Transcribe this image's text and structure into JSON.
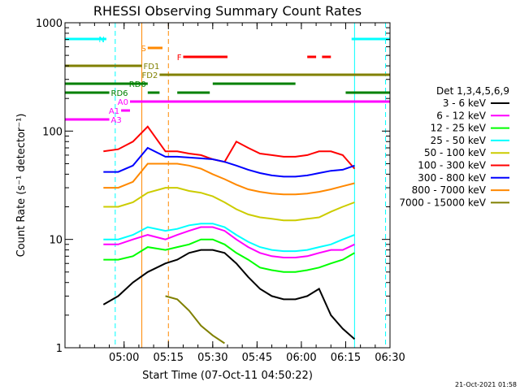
{
  "chart_data": {
    "type": "line",
    "title": "RHESSI Observing Summary Count Rates",
    "xlabel": "Start Time (07-Oct-11 04:50:22)",
    "ylabel": "Count Rate (s⁻¹ detector⁻¹)",
    "yscale": "log",
    "ylim": [
      1,
      1000
    ],
    "xlim_minutes": [
      -10,
      100
    ],
    "x_ticks": [
      {
        "min": 10,
        "label": "05:00"
      },
      {
        "min": 25,
        "label": "05:15"
      },
      {
        "min": 40,
        "label": "05:30"
      },
      {
        "min": 55,
        "label": "05:45"
      },
      {
        "min": 70,
        "label": "06:00"
      },
      {
        "min": 85,
        "label": "06:15"
      },
      {
        "min": 100,
        "label": "06:30"
      }
    ],
    "y_ticks": [
      {
        "value": 1,
        "label": "1"
      },
      {
        "value": 10,
        "label": "10"
      },
      {
        "value": 100,
        "label": "100"
      },
      {
        "value": 1000,
        "label": "1000"
      }
    ],
    "legend_title": "Det 1,3,4,5,6,9",
    "legend_position": "right",
    "series": [
      {
        "name": "3 - 6 keV",
        "color": "#000000",
        "data": [
          [
            3,
            2.5
          ],
          [
            8,
            3
          ],
          [
            13,
            4
          ],
          [
            18,
            5
          ],
          [
            24,
            6
          ],
          [
            28,
            6.5
          ],
          [
            32,
            7.5
          ],
          [
            36,
            8
          ],
          [
            40,
            8
          ],
          [
            44,
            7.5
          ],
          [
            48,
            6
          ],
          [
            52,
            4.5
          ],
          [
            56,
            3.5
          ],
          [
            60,
            3
          ],
          [
            64,
            2.8
          ],
          [
            68,
            2.8
          ],
          [
            72,
            3
          ],
          [
            76,
            3.5
          ],
          [
            80,
            2
          ],
          [
            84,
            1.5
          ],
          [
            88,
            1.2
          ]
        ]
      },
      {
        "name": "6 - 12 keV",
        "color": "#ff00ff",
        "data": [
          [
            3,
            9
          ],
          [
            8,
            9
          ],
          [
            13,
            10
          ],
          [
            18,
            11
          ],
          [
            24,
            10
          ],
          [
            28,
            11
          ],
          [
            32,
            12
          ],
          [
            36,
            13
          ],
          [
            40,
            13
          ],
          [
            44,
            12
          ],
          [
            48,
            10
          ],
          [
            52,
            8.5
          ],
          [
            56,
            7.5
          ],
          [
            60,
            7
          ],
          [
            64,
            6.8
          ],
          [
            68,
            6.8
          ],
          [
            72,
            7
          ],
          [
            76,
            7.5
          ],
          [
            80,
            8
          ],
          [
            84,
            8
          ],
          [
            88,
            9
          ]
        ]
      },
      {
        "name": "12 - 25 keV",
        "color": "#00ff00",
        "data": [
          [
            3,
            6.5
          ],
          [
            8,
            6.5
          ],
          [
            13,
            7
          ],
          [
            18,
            8.5
          ],
          [
            24,
            8
          ],
          [
            28,
            8.5
          ],
          [
            32,
            9
          ],
          [
            36,
            10
          ],
          [
            40,
            10
          ],
          [
            44,
            9
          ],
          [
            48,
            7.5
          ],
          [
            52,
            6.5
          ],
          [
            56,
            5.5
          ],
          [
            60,
            5.2
          ],
          [
            64,
            5
          ],
          [
            68,
            5
          ],
          [
            72,
            5.2
          ],
          [
            76,
            5.5
          ],
          [
            80,
            6
          ],
          [
            84,
            6.5
          ],
          [
            88,
            7.5
          ]
        ]
      },
      {
        "name": "25 - 50 keV",
        "color": "#00ffff",
        "data": [
          [
            3,
            10
          ],
          [
            8,
            10
          ],
          [
            13,
            11
          ],
          [
            18,
            13
          ],
          [
            24,
            12
          ],
          [
            28,
            12.5
          ],
          [
            32,
            13.5
          ],
          [
            36,
            14
          ],
          [
            40,
            14
          ],
          [
            44,
            13
          ],
          [
            48,
            11
          ],
          [
            52,
            9.5
          ],
          [
            56,
            8.5
          ],
          [
            60,
            8
          ],
          [
            64,
            7.8
          ],
          [
            68,
            7.8
          ],
          [
            72,
            8
          ],
          [
            76,
            8.5
          ],
          [
            80,
            9
          ],
          [
            84,
            10
          ],
          [
            88,
            11
          ]
        ]
      },
      {
        "name": "50 - 100 keV",
        "color": "#cccc00",
        "data": [
          [
            3,
            20
          ],
          [
            8,
            20
          ],
          [
            13,
            22
          ],
          [
            18,
            27
          ],
          [
            24,
            30
          ],
          [
            28,
            30
          ],
          [
            32,
            28
          ],
          [
            36,
            27
          ],
          [
            40,
            25
          ],
          [
            44,
            22
          ],
          [
            48,
            19
          ],
          [
            52,
            17
          ],
          [
            56,
            16
          ],
          [
            60,
            15.5
          ],
          [
            64,
            15
          ],
          [
            68,
            15
          ],
          [
            72,
            15.5
          ],
          [
            76,
            16
          ],
          [
            80,
            18
          ],
          [
            84,
            20
          ],
          [
            88,
            22
          ]
        ]
      },
      {
        "name": "100 - 300 keV",
        "color": "#ff0000",
        "data": [
          [
            3,
            65
          ],
          [
            8,
            68
          ],
          [
            13,
            80
          ],
          [
            18,
            110
          ],
          [
            24,
            65
          ],
          [
            28,
            65
          ],
          [
            32,
            62
          ],
          [
            36,
            60
          ],
          [
            40,
            55
          ],
          [
            44,
            52
          ],
          [
            48,
            80
          ],
          [
            52,
            70
          ],
          [
            56,
            62
          ],
          [
            60,
            60
          ],
          [
            64,
            58
          ],
          [
            68,
            58
          ],
          [
            72,
            60
          ],
          [
            76,
            65
          ],
          [
            80,
            65
          ],
          [
            84,
            60
          ],
          [
            88,
            45
          ]
        ]
      },
      {
        "name": "300 - 800 keV",
        "color": "#0000ff",
        "data": [
          [
            3,
            42
          ],
          [
            8,
            42
          ],
          [
            13,
            48
          ],
          [
            18,
            70
          ],
          [
            24,
            58
          ],
          [
            28,
            58
          ],
          [
            32,
            57
          ],
          [
            36,
            56
          ],
          [
            40,
            55
          ],
          [
            44,
            52
          ],
          [
            48,
            48
          ],
          [
            52,
            44
          ],
          [
            56,
            41
          ],
          [
            60,
            39
          ],
          [
            64,
            38
          ],
          [
            68,
            38
          ],
          [
            72,
            39
          ],
          [
            76,
            41
          ],
          [
            80,
            43
          ],
          [
            84,
            44
          ],
          [
            88,
            48
          ]
        ]
      },
      {
        "name": "800 - 7000 keV",
        "color": "#ff8800",
        "data": [
          [
            3,
            30
          ],
          [
            8,
            30
          ],
          [
            13,
            34
          ],
          [
            18,
            50
          ],
          [
            24,
            50
          ],
          [
            28,
            50
          ],
          [
            32,
            48
          ],
          [
            36,
            45
          ],
          [
            40,
            40
          ],
          [
            44,
            36
          ],
          [
            48,
            32
          ],
          [
            52,
            29
          ],
          [
            56,
            27.5
          ],
          [
            60,
            26.5
          ],
          [
            64,
            26
          ],
          [
            68,
            26
          ],
          [
            72,
            26.5
          ],
          [
            76,
            27.5
          ],
          [
            80,
            29
          ],
          [
            84,
            31
          ],
          [
            88,
            33
          ]
        ]
      },
      {
        "name": "7000 - 15000 keV",
        "color": "#808000",
        "data": [
          [
            24,
            3
          ],
          [
            28,
            2.8
          ],
          [
            32,
            2.2
          ],
          [
            36,
            1.6
          ],
          [
            40,
            1.3
          ],
          [
            44,
            1.1
          ]
        ]
      }
    ],
    "flag_bars": [
      {
        "label": "N",
        "color": "#00ffff",
        "segments": [
          [
            -10,
            4
          ],
          [
            87,
            100
          ]
        ]
      },
      {
        "label": "S",
        "color": "#ff8800",
        "segments": [
          [
            18,
            23
          ]
        ]
      },
      {
        "label": "F",
        "color": "#ff0000",
        "segments": [
          [
            30,
            45
          ],
          [
            72,
            75
          ],
          [
            77,
            80
          ]
        ]
      },
      {
        "label": "FD1",
        "color": "#808000",
        "segments": [
          [
            -10,
            16
          ]
        ]
      },
      {
        "label": "FD2",
        "color": "#808000",
        "segments": [
          [
            22,
            100
          ]
        ]
      },
      {
        "label": "RD0",
        "color": "#008000",
        "segments": [
          [
            -10,
            18
          ],
          [
            40,
            68
          ]
        ]
      },
      {
        "label": "RD6",
        "color": "#008000",
        "segments": [
          [
            -10,
            5
          ],
          [
            18,
            22
          ],
          [
            28,
            39
          ],
          [
            85,
            100
          ]
        ]
      },
      {
        "label": "A0",
        "color": "#ff00ff",
        "segments": [
          [
            12,
            100
          ]
        ]
      },
      {
        "label": "A1",
        "color": "#ff00ff",
        "segments": [
          [
            9,
            12
          ]
        ]
      },
      {
        "label": "A3",
        "color": "#ff00ff",
        "segments": [
          [
            -10,
            5
          ]
        ]
      }
    ],
    "vlines": [
      {
        "min": -10,
        "color": "#00ffff",
        "style": "solid"
      },
      {
        "min": 7,
        "color": "#00ffff",
        "style": "dashed"
      },
      {
        "min": 88,
        "color": "#00ffff",
        "style": "solid"
      },
      {
        "min": 98.5,
        "color": "#00ffff",
        "style": "dashed"
      },
      {
        "min": 16,
        "color": "#ff8800",
        "style": "solid"
      },
      {
        "min": 25,
        "color": "#ff8800",
        "style": "dashed"
      }
    ]
  },
  "footer": {
    "timestamp": "21-Oct-2021 01:58"
  }
}
